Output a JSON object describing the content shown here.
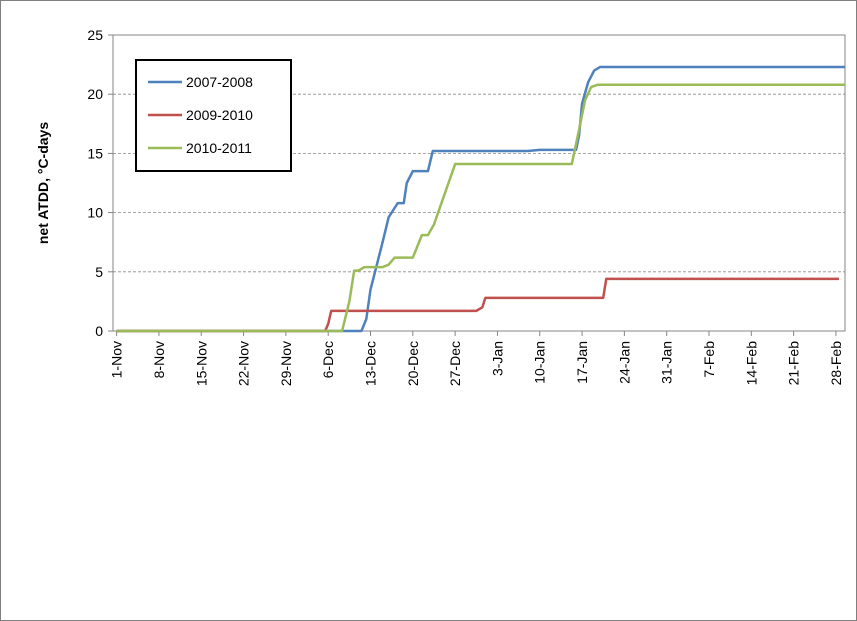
{
  "chart_data": {
    "type": "line",
    "ylabel": "net ATDD, °C-days",
    "xlim": [
      -0.6,
      120.5
    ],
    "xticks": [
      {
        "value": 0,
        "label": "1-Nov"
      },
      {
        "value": 7,
        "label": "8-Nov"
      },
      {
        "value": 14,
        "label": "15-Nov"
      },
      {
        "value": 21,
        "label": "22-Nov"
      },
      {
        "value": 28,
        "label": "29-Nov"
      },
      {
        "value": 35,
        "label": "6-Dec"
      },
      {
        "value": 42,
        "label": "13-Dec"
      },
      {
        "value": 49,
        "label": "20-Dec"
      },
      {
        "value": 56,
        "label": "27-Dec"
      },
      {
        "value": 63,
        "label": "3-Jan"
      },
      {
        "value": 70,
        "label": "10-Jan"
      },
      {
        "value": 77,
        "label": "17-Jan"
      },
      {
        "value": 84,
        "label": "24-Jan"
      },
      {
        "value": 91,
        "label": "31-Jan"
      },
      {
        "value": 98,
        "label": "7-Feb"
      },
      {
        "value": 105,
        "label": "14-Feb"
      },
      {
        "value": 112,
        "label": "21-Feb"
      },
      {
        "value": 119,
        "label": "28-Feb"
      }
    ],
    "ylim": [
      0,
      25
    ],
    "yticks": [
      0,
      5,
      10,
      15,
      20,
      25
    ],
    "grid": true,
    "legend": "upper left",
    "series": [
      {
        "name": "2007-2008",
        "color": "#4f81bd",
        "x": [
          0,
          40.5,
          41.3,
          42,
          43,
          44,
          45,
          46.5,
          47.5,
          48,
          49,
          51.5,
          52.3,
          68,
          70,
          76,
          76.5,
          77,
          78,
          79,
          80,
          120.5
        ],
        "values": [
          0,
          0,
          1,
          3.5,
          5.5,
          7.5,
          9.6,
          10.8,
          10.8,
          12.5,
          13.5,
          13.5,
          15.2,
          15.2,
          15.3,
          15.3,
          16.5,
          19.2,
          21,
          22,
          22.3,
          22.3
        ]
      },
      {
        "name": "2009-2010",
        "color": "#c0504d",
        "x": [
          0,
          34.5,
          35,
          35.5,
          59.5,
          60.5,
          61,
          80.5,
          81,
          119.5
        ],
        "values": [
          0,
          0,
          0.6,
          1.7,
          1.7,
          2,
          2.8,
          2.8,
          4.4,
          4.4
        ]
      },
      {
        "name": "2010-2011",
        "color": "#9bbb59",
        "x": [
          0,
          37.3,
          38.5,
          39.3,
          40,
          41,
          44,
          45,
          46,
          49,
          50.5,
          51.5,
          52.5,
          56,
          75.3,
          76.5,
          77.5,
          78.5,
          79.6,
          120.5
        ],
        "values": [
          0,
          0,
          2.5,
          5.1,
          5.1,
          5.4,
          5.4,
          5.6,
          6.2,
          6.2,
          8.1,
          8.1,
          9,
          14.1,
          14.1,
          17,
          19.5,
          20.6,
          20.8,
          20.8
        ]
      }
    ]
  }
}
